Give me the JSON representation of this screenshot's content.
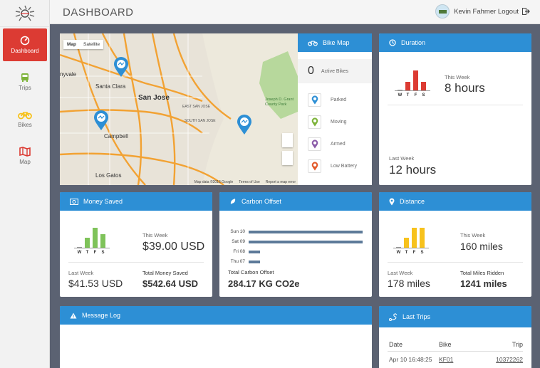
{
  "header": {
    "title": "DASHBOARD",
    "user": "Kevin Fahmer Logout"
  },
  "sidebar": {
    "items": [
      {
        "label": "Dashboard",
        "icon": "dashboard-icon",
        "active": true
      },
      {
        "label": "Trips",
        "icon": "bus-icon"
      },
      {
        "label": "Bikes",
        "icon": "bike-icon"
      },
      {
        "label": "Map",
        "icon": "map-icon"
      }
    ]
  },
  "map": {
    "toggle": [
      "Map",
      "Satellite"
    ],
    "labels": {
      "san_jose": "San Jose",
      "santa_clara": "Santa Clara",
      "sunnyvale": "nyvale",
      "campbell": "Campbell",
      "los_gatos": "Los Gatos",
      "east_san_jose": "EAST SAN JOSE",
      "south_san_jose": "SOUTH SAN JOSE",
      "park": "Joseph D. Grant County Park"
    },
    "footer": [
      "Map data ©2016 Google",
      "Terms of Use",
      "Report a map error"
    ]
  },
  "bike_map": {
    "title": "Bike Map",
    "active_count": "0",
    "active_label": "Active Bikes",
    "legend": [
      {
        "label": "Parked",
        "color": "#2d8fd5"
      },
      {
        "label": "Moving",
        "color": "#7db33a"
      },
      {
        "label": "Armed",
        "color": "#8a5aa8"
      },
      {
        "label": "Low Battery",
        "color": "#e35a2a"
      }
    ]
  },
  "duration": {
    "title": "Duration",
    "this_week_label": "This Week",
    "this_week_value": "8 hours",
    "last_week_label": "Last Week",
    "last_week_value": "12 hours",
    "color": "#dc3b33",
    "days": [
      "W",
      "T",
      "F",
      "S"
    ],
    "bars": [
      0,
      3,
      7,
      3
    ]
  },
  "money": {
    "title": "Money Saved",
    "this_week_label": "This Week",
    "this_week_value": "$39.00 USD",
    "last_week_label": "Last Week",
    "last_week_value": "$41.53 USD",
    "total_label": "Total Money Saved",
    "total_value": "$542.64 USD",
    "color": "#7fc35a",
    "days": [
      "W",
      "T",
      "F",
      "S"
    ],
    "bars": [
      0,
      3,
      6,
      4
    ]
  },
  "carbon": {
    "title": "Carbon Offset",
    "total_label": "Total Carbon Offset",
    "total_value": "284.17 KG CO2e",
    "chart_data": {
      "type": "bar",
      "categories": [
        "Sun 10",
        "Sat 09",
        "Fri 08",
        "Thu 07"
      ],
      "values": [
        10,
        10,
        1,
        1
      ],
      "title": "",
      "xlabel": "",
      "ylabel": ""
    }
  },
  "distance": {
    "title": "Distance",
    "this_week_label": "This Week",
    "this_week_value": "160 miles",
    "last_week_label": "Last Week",
    "last_week_value": "178 miles",
    "total_label": "Total Miles Ridden",
    "total_value": "1241 miles",
    "color": "#f7c21d",
    "days": [
      "W",
      "T",
      "F",
      "S"
    ],
    "bars": [
      0,
      3,
      6,
      6
    ]
  },
  "message_log": {
    "title": "Message Log"
  },
  "last_trips": {
    "title": "Last Trips",
    "columns": [
      "Date",
      "Bike",
      "Trip"
    ],
    "rows": [
      {
        "date": "Apr 10 16:48:25",
        "bike": "KF01",
        "trip": "10372262"
      }
    ]
  }
}
